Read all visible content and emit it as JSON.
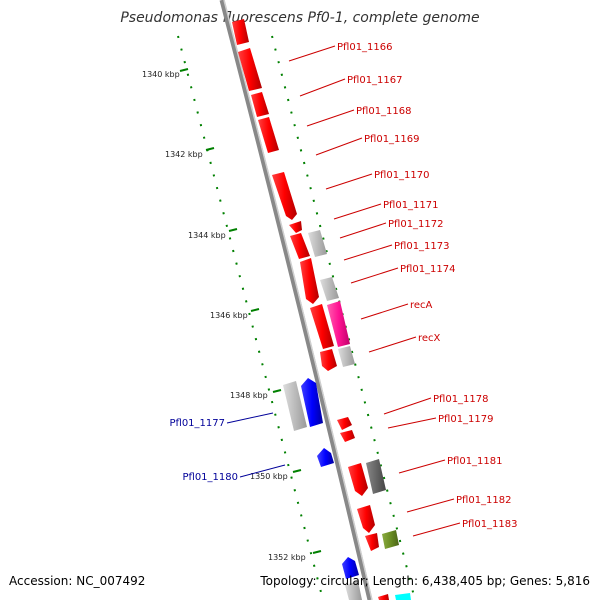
{
  "title": "Pseudomonas fluorescens Pf0-1, complete genome",
  "footer": {
    "accession": "Accession: NC_007492",
    "summary": "Topology: circular; Length: 6,438,405 bp; Genes: 5,816"
  },
  "ticks": [
    "1340 kbp",
    "1342 kbp",
    "1344 kbp",
    "1346 kbp",
    "1348 kbp",
    "1350 kbp",
    "1352 kbp"
  ],
  "genes_forward": [
    "Pfl01_1166",
    "Pfl01_1167",
    "Pfl01_1168",
    "Pfl01_1169",
    "Pfl01_1170",
    "Pfl01_1171",
    "Pfl01_1172",
    "Pfl01_1173",
    "Pfl01_1174",
    "recA",
    "recX",
    "Pfl01_1178",
    "Pfl01_1179",
    "Pfl01_1181",
    "Pfl01_1182",
    "Pfl01_1183"
  ],
  "genes_reverse": [
    "Pfl01_1177",
    "Pfl01_1180"
  ],
  "colors": {
    "forward_gene": "#ff0000",
    "reverse_gene": "#0000ff",
    "label_forward": "#cc0000",
    "label_reverse": "#000099",
    "highlight_gene": "#ff1493",
    "green_gene": "#6b8e23",
    "grey_gene": "#bbbbbb",
    "dark_grey_gene": "#666666",
    "cyan_gene": "#00ffff",
    "tick_marks": "#008000",
    "backbone": "#888888"
  }
}
